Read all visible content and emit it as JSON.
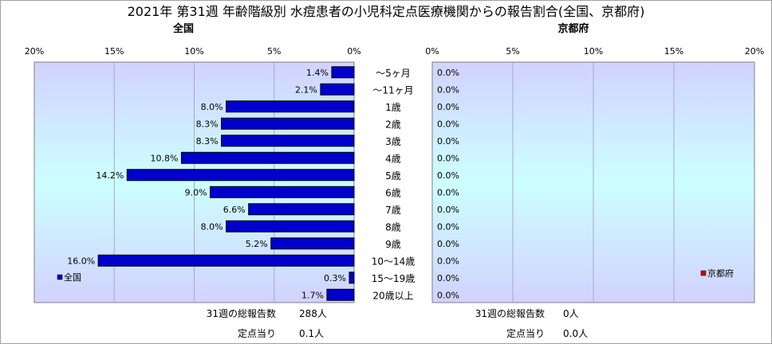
{
  "chart_data": {
    "type": "bar",
    "title": "2021年 第31週 年齢階級別 水痘患者の小児科定点医療機関からの報告割合(全国、京都府)",
    "categories": [
      "～5ヶ月",
      "～11ヶ月",
      "1歳",
      "2歳",
      "3歳",
      "4歳",
      "5歳",
      "6歳",
      "7歳",
      "8歳",
      "9歳",
      "10～14歳",
      "15～19歳",
      "20歳以上"
    ],
    "xlim": [
      0,
      20
    ],
    "x_ticks": [
      "0%",
      "5%",
      "10%",
      "15%",
      "20%"
    ],
    "panels": [
      {
        "title": "全国",
        "legend": "全国",
        "legend_position": "bottom-left",
        "color": "#0000cc",
        "values": [
          1.4,
          2.1,
          8.0,
          8.3,
          8.3,
          10.8,
          14.2,
          9.0,
          6.6,
          8.0,
          5.2,
          16.0,
          0.3,
          1.7
        ],
        "labels": [
          "1.4%",
          "2.1%",
          "8.0%",
          "8.3%",
          "8.3%",
          "10.8%",
          "14.2%",
          "9.0%",
          "6.6%",
          "8.0%",
          "5.2%",
          "16.0%",
          "0.3%",
          "1.7%"
        ],
        "footer": [
          {
            "label": "31週の総報告数",
            "value": "288人"
          },
          {
            "label": "定点当り",
            "value": "0.1人"
          }
        ]
      },
      {
        "title": "京都府",
        "legend": "京都府",
        "legend_position": "bottom-right",
        "color": "#cc0000",
        "values": [
          0,
          0,
          0,
          0,
          0,
          0,
          0,
          0,
          0,
          0,
          0,
          0,
          0,
          0
        ],
        "labels": [
          "0.0%",
          "0.0%",
          "0.0%",
          "0.0%",
          "0.0%",
          "0.0%",
          "0.0%",
          "0.0%",
          "0.0%",
          "0.0%",
          "0.0%",
          "0.0%",
          "0.0%",
          "0.0%"
        ],
        "footer": [
          {
            "label": "31週の総報告数",
            "value": "0人"
          },
          {
            "label": "定点当り",
            "value": "0.0人"
          }
        ]
      }
    ]
  }
}
